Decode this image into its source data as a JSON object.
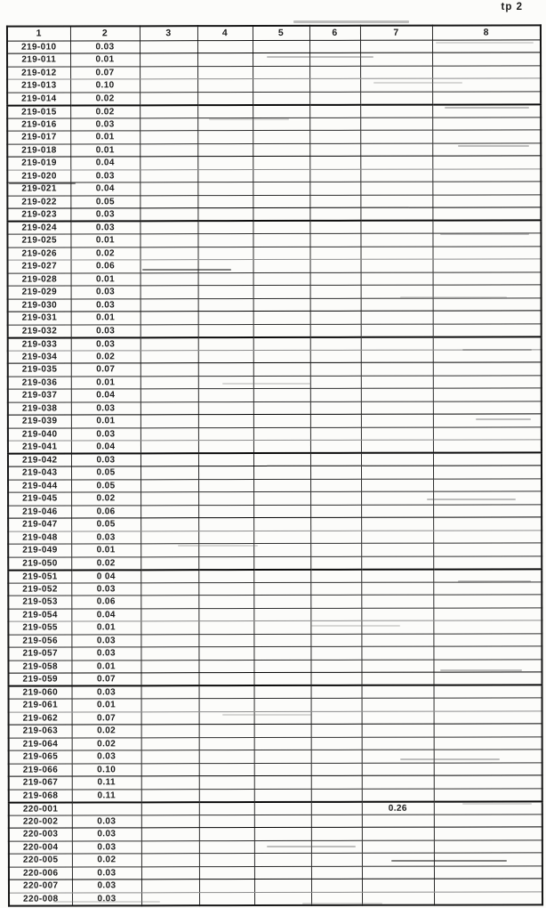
{
  "page": {
    "corner_label": "tp 2"
  },
  "table": {
    "headers": [
      "1",
      "2",
      "3",
      "4",
      "5",
      "6",
      "7",
      "8"
    ],
    "rows": [
      [
        "219-010",
        "0.03",
        "",
        "",
        "",
        "",
        "",
        ""
      ],
      [
        "219-011",
        "0.01",
        "",
        "",
        "",
        "",
        "",
        ""
      ],
      [
        "219-012",
        "0.07",
        "",
        "",
        "",
        "",
        "",
        ""
      ],
      [
        "219-013",
        "0.10",
        "",
        "",
        "",
        "",
        "",
        ""
      ],
      [
        "219-014",
        "0.02",
        "",
        "",
        "",
        "",
        "",
        ""
      ],
      [
        "219-015",
        "0.02",
        "",
        "",
        "",
        "",
        "",
        ""
      ],
      [
        "219-016",
        "0.03",
        "",
        "",
        "",
        "",
        "",
        ""
      ],
      [
        "219-017",
        "0.01",
        "",
        "",
        "",
        "",
        "",
        ""
      ],
      [
        "219-018",
        "0.01",
        "",
        "",
        "",
        "",
        "",
        ""
      ],
      [
        "219-019",
        "0.04",
        "",
        "",
        "",
        "",
        "",
        ""
      ],
      [
        "219-020",
        "0.03",
        "",
        "",
        "",
        "",
        "",
        ""
      ],
      [
        "219-021",
        "0.04",
        "",
        "",
        "",
        "",
        "",
        ""
      ],
      [
        "219-022",
        "0.05",
        "",
        "",
        "",
        "",
        "",
        ""
      ],
      [
        "219-023",
        "0.03",
        "",
        "",
        "",
        "",
        "",
        ""
      ],
      [
        "219-024",
        "0.03",
        "",
        "",
        "",
        "",
        "",
        ""
      ],
      [
        "219-025",
        "0.01",
        "",
        "",
        "",
        "",
        "",
        ""
      ],
      [
        "219-026",
        "0.02",
        "",
        "",
        "",
        "",
        "",
        ""
      ],
      [
        "219-027",
        "0.06",
        "",
        "",
        "",
        "",
        "",
        ""
      ],
      [
        "219-028",
        "0.01",
        "",
        "",
        "",
        "",
        "",
        ""
      ],
      [
        "219-029",
        "0.03",
        "",
        "",
        "",
        "",
        "",
        ""
      ],
      [
        "219-030",
        "0.03",
        "",
        "",
        "",
        "",
        "",
        ""
      ],
      [
        "219-031",
        "0.01",
        "",
        "",
        "",
        "",
        "",
        ""
      ],
      [
        "219-032",
        "0.03",
        "",
        "",
        "",
        "",
        "",
        ""
      ],
      [
        "219-033",
        "0.03",
        "",
        "",
        "",
        "",
        "",
        ""
      ],
      [
        "219-034",
        "0.02",
        "",
        "",
        "",
        "",
        "",
        ""
      ],
      [
        "219-035",
        "0.07",
        "",
        "",
        "",
        "",
        "",
        ""
      ],
      [
        "219-036",
        "0.01",
        "",
        "",
        "",
        "",
        "",
        ""
      ],
      [
        "219-037",
        "0.04",
        "",
        "",
        "",
        "",
        "",
        ""
      ],
      [
        "219-038",
        "0.03",
        "",
        "",
        "",
        "",
        "",
        ""
      ],
      [
        "219-039",
        "0.01",
        "",
        "",
        "",
        "",
        "",
        ""
      ],
      [
        "219-040",
        "0.03",
        "",
        "",
        "",
        "",
        "",
        ""
      ],
      [
        "219-041",
        "0.04",
        "",
        "",
        "",
        "",
        "",
        ""
      ],
      [
        "219-042",
        "0.03",
        "",
        "",
        "",
        "",
        "",
        ""
      ],
      [
        "219-043",
        "0.05",
        "",
        "",
        "",
        "",
        "",
        ""
      ],
      [
        "219-044",
        "0.05",
        "",
        "",
        "",
        "",
        "",
        ""
      ],
      [
        "219-045",
        "0.02",
        "",
        "",
        "",
        "",
        "",
        ""
      ],
      [
        "219-046",
        "0.06",
        "",
        "",
        "",
        "",
        "",
        ""
      ],
      [
        "219-047",
        "0.05",
        "",
        "",
        "",
        "",
        "",
        ""
      ],
      [
        "219-048",
        "0.03",
        "",
        "",
        "",
        "",
        "",
        ""
      ],
      [
        "219-049",
        "0.01",
        "",
        "",
        "",
        "",
        "",
        ""
      ],
      [
        "219-050",
        "0.02",
        "",
        "",
        "",
        "",
        "",
        ""
      ],
      [
        "219-051",
        "0 04",
        "",
        "",
        "",
        "",
        "",
        ""
      ],
      [
        "219-052",
        "0.03",
        "",
        "",
        "",
        "",
        "",
        ""
      ],
      [
        "219-053",
        "0.06",
        "",
        "",
        "",
        "",
        "",
        ""
      ],
      [
        "219-054",
        "0.04",
        "",
        "",
        "",
        "",
        "",
        ""
      ],
      [
        "219-055",
        "0.01",
        "",
        "",
        "",
        "",
        "",
        ""
      ],
      [
        "219-056",
        "0.03",
        "",
        "",
        "",
        "",
        "",
        ""
      ],
      [
        "219-057",
        "0.03",
        "",
        "",
        "",
        "",
        "",
        ""
      ],
      [
        "219-058",
        "0.01",
        "",
        "",
        "",
        "",
        "",
        ""
      ],
      [
        "219-059",
        "0.07",
        "",
        "",
        "",
        "",
        "",
        ""
      ],
      [
        "219-060",
        "0.03",
        "",
        "",
        "",
        "",
        "",
        ""
      ],
      [
        "219-061",
        "0.01",
        "",
        "",
        "",
        "",
        "",
        ""
      ],
      [
        "219-062",
        "0.07",
        "",
        "",
        "",
        "",
        "",
        ""
      ],
      [
        "219-063",
        "0.02",
        "",
        "",
        "",
        "",
        "",
        ""
      ],
      [
        "219-064",
        "0.02",
        "",
        "",
        "",
        "",
        "",
        ""
      ],
      [
        "219-065",
        "0.03",
        "",
        "",
        "",
        "",
        "",
        ""
      ],
      [
        "219-066",
        "0.10",
        "",
        "",
        "",
        "",
        "",
        ""
      ],
      [
        "219-067",
        "0.11",
        "",
        "",
        "",
        "",
        "",
        ""
      ],
      [
        "219-068",
        "0.11",
        "",
        "",
        "",
        "",
        "",
        ""
      ],
      [
        "220-001",
        "",
        "",
        "",
        "",
        "",
        "0.26",
        ""
      ],
      [
        "220-002",
        "0.03",
        "",
        "",
        "",
        "",
        "",
        ""
      ],
      [
        "220-003",
        "0.03",
        "",
        "",
        "",
        "",
        "",
        ""
      ],
      [
        "220-004",
        "0.03",
        "",
        "",
        "",
        "",
        "",
        ""
      ],
      [
        "220-005",
        "0.02",
        "",
        "",
        "",
        "",
        "",
        ""
      ],
      [
        "220-006",
        "0.03",
        "",
        "",
        "",
        "",
        "",
        ""
      ],
      [
        "220-007",
        "0.03",
        "",
        "",
        "",
        "",
        "",
        ""
      ],
      [
        "220-008",
        "0.03",
        "",
        "",
        "",
        "",
        "",
        ""
      ]
    ]
  }
}
